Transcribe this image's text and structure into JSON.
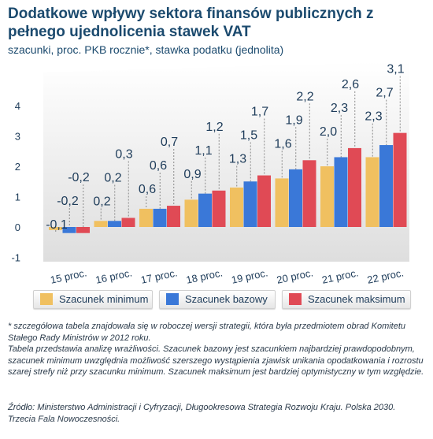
{
  "header": {
    "title": "Dodatkowe wpływy sektora finansów publicznych z pełnego ujednolicenia stawek VAT",
    "subtitle": "szacunki, proc. PKB rocznie*, stawka podatku (jednolita)"
  },
  "chart_data": {
    "type": "bar",
    "categories": [
      "15 proc.",
      "16 proc.",
      "17 proc.",
      "18 proc.",
      "19 proc.",
      "20 proc.",
      "21 proc.",
      "22 proc."
    ],
    "series": [
      {
        "name": "Szacunek minimum",
        "color": "#f0c060",
        "values": [
          -0.1,
          0.2,
          0.6,
          0.9,
          1.3,
          1.6,
          2.0,
          2.3
        ],
        "labels": [
          "-0,1",
          "0,2",
          "0,6",
          "0,9",
          "1,3",
          "1,6",
          "2,0",
          "2,3"
        ]
      },
      {
        "name": "Szacunek bazowy",
        "color": "#3a78d8",
        "values": [
          -0.2,
          0.2,
          0.6,
          1.1,
          1.5,
          1.9,
          2.3,
          2.7
        ],
        "labels": [
          "-0,2",
          "0,2",
          "0,6",
          "1,1",
          "1,5",
          "1,9",
          "2,3",
          "2,7"
        ]
      },
      {
        "name": "Szacunek maksimum",
        "color": "#e04a55",
        "values": [
          -0.2,
          0.3,
          0.7,
          1.2,
          1.7,
          2.2,
          2.6,
          3.1
        ],
        "labels": [
          "-0,2",
          "0,3",
          "0,7",
          "1,2",
          "1,7",
          "2,2",
          "2,6",
          "3,1"
        ]
      }
    ],
    "yticks": [
      "-1",
      "0",
      "1",
      "2",
      "3",
      "4"
    ],
    "ylim": [
      -1,
      4
    ],
    "grid": false,
    "legend_position": "bottom"
  },
  "footnote": {
    "line1": "* szczegółowa tabela znajdowała się w roboczej wersji strategii, która była przedmiotem obrad Komitetu Stałego Rady Ministrów w 2012 roku.",
    "line2": "Tabela przedstawia analizę wrażliwości. Szacunek bazowy jest szacunkiem najbardziej prawdopodobnym, szacunek minimum uwzględnia możliwość szerszego wystąpienia zjawisk unikania opodatkowania i rozrostu szarej strefy niż przy szacunku minimum. Szacunek maksimum jest bardziej optymistyczny w tym względzie."
  },
  "source": {
    "text": "Źródło: Ministerstwo Administracji i Cyfryzacji, Długookresowa Strategia Rozwoju Kraju. Polska 2030. Trzecia Fala Nowoczesności."
  }
}
